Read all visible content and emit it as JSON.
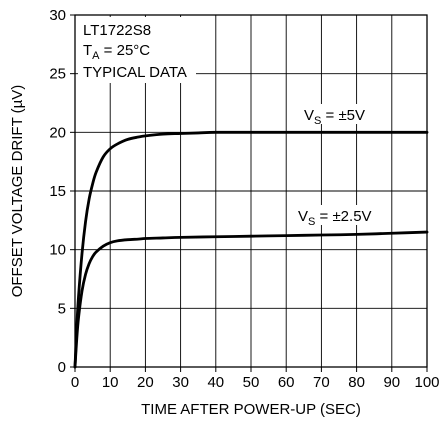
{
  "chart_data": {
    "type": "line",
    "title": "",
    "xlabel": "TIME AFTER POWER-UP (SEC)",
    "ylabel": "OFFSET VOLTAGE DRIFT (µV)",
    "xlim": [
      0,
      100
    ],
    "ylim": [
      0,
      30
    ],
    "x_ticks": [
      0,
      10,
      20,
      30,
      40,
      50,
      60,
      70,
      80,
      90,
      100
    ],
    "y_ticks": [
      0,
      5,
      10,
      15,
      20,
      25,
      30
    ],
    "grid": true,
    "annotations": {
      "part": "LT1722S8",
      "temp_prefix": "T",
      "temp_sub": "A",
      "temp_value": " = 25°C",
      "typical": "TYPICAL DATA"
    },
    "series": [
      {
        "name": "V_S = ±5V",
        "label_prefix": "V",
        "label_sub": "S",
        "label_value": " = ±5V",
        "x": [
          0,
          0.5,
          1,
          2,
          3,
          4,
          5,
          6,
          8,
          10,
          12,
          15,
          18,
          20,
          25,
          30,
          35,
          40,
          50,
          60,
          70,
          80,
          90,
          100
        ],
        "values": [
          0,
          3.4,
          6.0,
          9.7,
          12.4,
          14.3,
          15.6,
          16.6,
          17.9,
          18.6,
          19.0,
          19.4,
          19.6,
          19.7,
          19.85,
          19.9,
          19.95,
          20.0,
          20.0,
          20.0,
          20.0,
          20.0,
          20.0,
          20.0
        ]
      },
      {
        "name": "V_S = ±2.5V",
        "label_prefix": "V",
        "label_sub": "S",
        "label_value": " = ±2.5V",
        "x": [
          0,
          0.5,
          1,
          2,
          3,
          4,
          5,
          6,
          8,
          10,
          12,
          15,
          18,
          20,
          25,
          30,
          40,
          50,
          60,
          70,
          80,
          90,
          100
        ],
        "values": [
          0,
          2.4,
          4.2,
          6.5,
          7.9,
          8.8,
          9.4,
          9.8,
          10.3,
          10.6,
          10.75,
          10.85,
          10.9,
          10.95,
          11.0,
          11.05,
          11.1,
          11.15,
          11.2,
          11.25,
          11.3,
          11.4,
          11.5
        ]
      }
    ]
  }
}
